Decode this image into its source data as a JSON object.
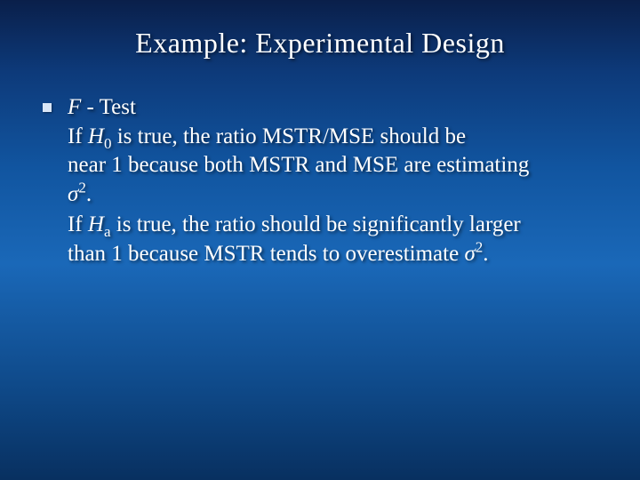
{
  "title": "Example:  Experimental Design",
  "heading": {
    "f": "F",
    "dash_test": " - Test"
  },
  "p1": {
    "if": "If ",
    "H": "H",
    "sub0": "0",
    "rest1": " is true, the ratio MSTR/MSE should be",
    "line2": "near 1 because both MSTR and MSE are estimating",
    "sigma": "σ",
    "sup2": "2",
    "period": "."
  },
  "p2": {
    "if": "If ",
    "H": "H",
    "suba": "a",
    "rest1": " is true, the ratio should be significantly larger",
    "line2a": "than 1 because MSTR tends to overestimate  ",
    "sigma": "σ",
    "sup2": "2",
    "period": "."
  },
  "colors": {
    "text": "#ffffff",
    "bullet": "#d9e6f7",
    "bg_top": "#0a1f4a",
    "bg_mid": "#1a68b8",
    "bg_bottom": "#083060"
  },
  "typography": {
    "title_fontsize": 32,
    "body_fontsize": 25,
    "font_family": "Times New Roman"
  }
}
